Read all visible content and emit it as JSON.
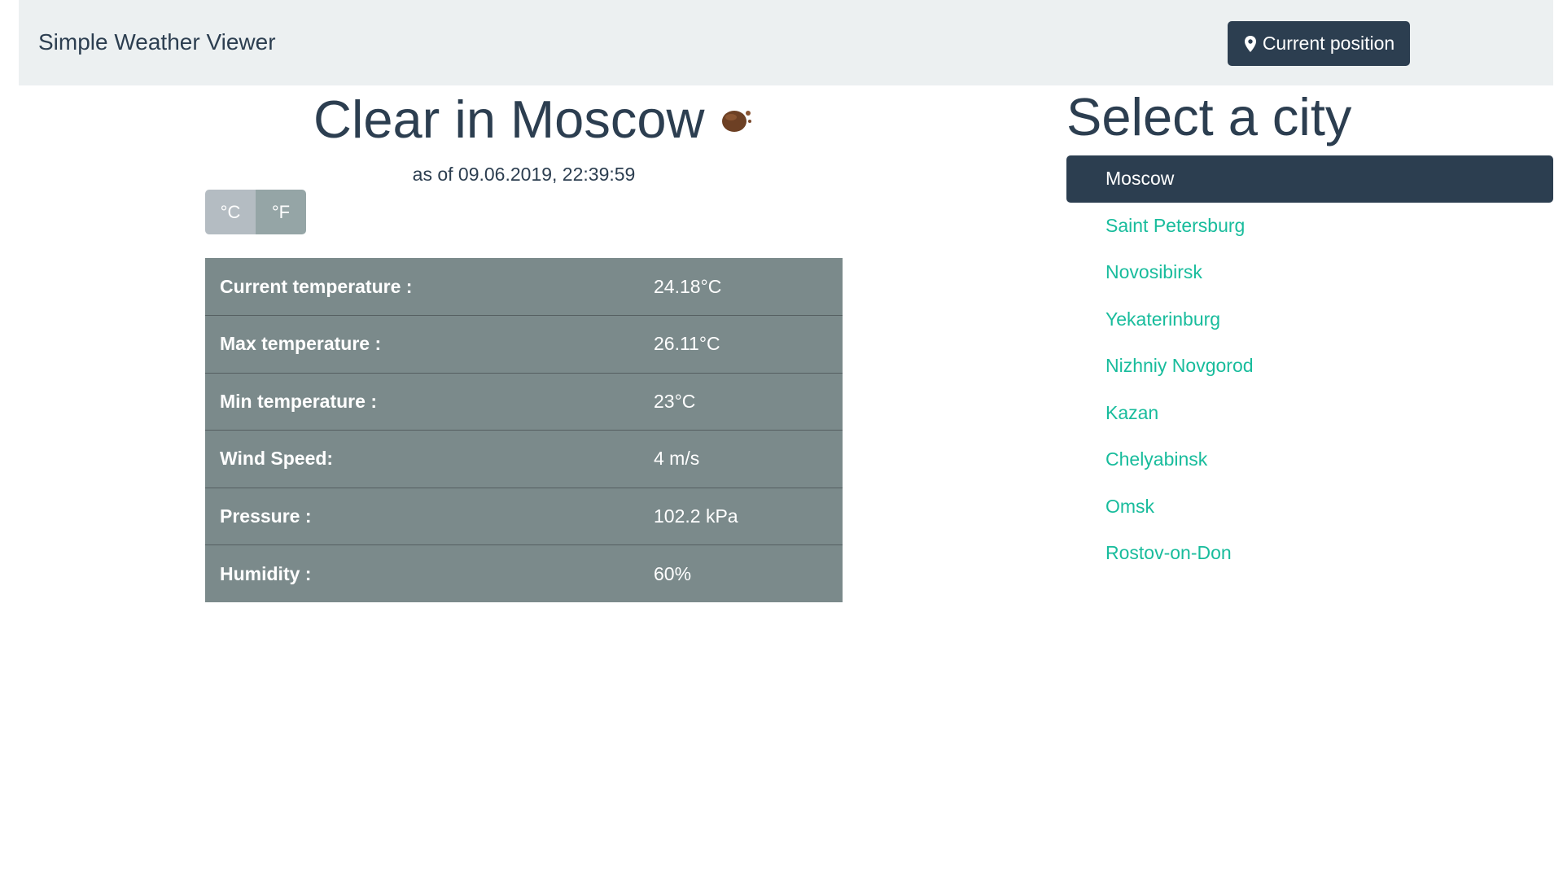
{
  "app": {
    "title": "Simple Weather Viewer"
  },
  "header": {
    "current_position_label": "Current position",
    "icon": "map-pin-icon"
  },
  "weather": {
    "title": "Clear in Moscow",
    "icon": "clear-night-weather-icon",
    "updated_at": "as of 09.06.2019, 22:39:59",
    "units": [
      {
        "label": "°C",
        "state": "selected"
      },
      {
        "label": "°F",
        "state": "unselected"
      }
    ],
    "metrics": [
      {
        "label": "Current temperature :",
        "value": "24.18°C"
      },
      {
        "label": "Max temperature :",
        "value": "26.11°C"
      },
      {
        "label": "Min temperature :",
        "value": "23°C"
      },
      {
        "label": "Wind Speed:",
        "value": "4 m/s"
      },
      {
        "label": "Pressure :",
        "value": "102.2 kPa"
      },
      {
        "label": "Humidity :",
        "value": "60%"
      }
    ]
  },
  "city_selector": {
    "title": "Select a city",
    "selected_city": "Moscow",
    "cities": [
      {
        "name": "Moscow"
      },
      {
        "name": "Saint Petersburg"
      },
      {
        "name": "Novosibirsk"
      },
      {
        "name": "Yekaterinburg"
      },
      {
        "name": "Nizhniy Novgorod"
      },
      {
        "name": "Kazan"
      },
      {
        "name": "Chelyabinsk"
      },
      {
        "name": "Omsk"
      },
      {
        "name": "Rostov-on-Don"
      }
    ]
  },
  "colors": {
    "navbar_background": "#ecf0f1",
    "primary": "#2c3e50",
    "accent": "#18bc9c",
    "table_background": "#7b8a8b",
    "unit_selected": "#b4bcc2",
    "unit_unselected": "#95a5a6"
  }
}
